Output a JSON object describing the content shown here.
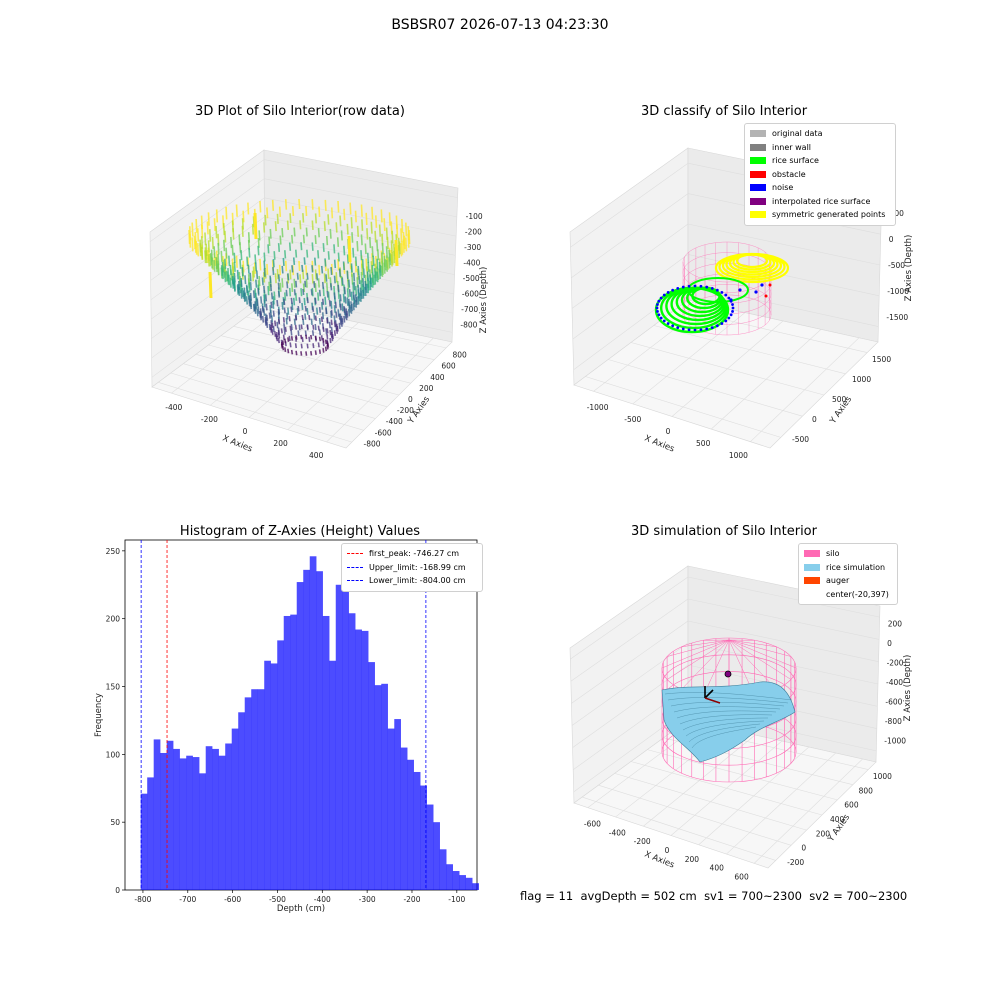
{
  "suptitle": "BSBSR07 2026-07-13 04:23:30",
  "panels": {
    "raw": {
      "title": "3D Plot of Silo Interior(row data)",
      "xlabel": "X Axies",
      "ylabel": "Y Axies",
      "zlabel": "Z Axies (Depth)",
      "xticks": [
        "-400",
        "-200",
        "0",
        "200",
        "400"
      ],
      "yticks": [
        "-800",
        "-600",
        "-400",
        "-200",
        "0",
        "200",
        "400",
        "600",
        "800"
      ],
      "zticks": [
        "-100",
        "-200",
        "-300",
        "-400",
        "-500",
        "-600",
        "-700",
        "-800"
      ],
      "colormap": "viridis"
    },
    "classify": {
      "title": "3D classify of Silo Interior",
      "xlabel": "X Axies",
      "ylabel": "Y Axies",
      "zlabel": "Z Axies (Depth)",
      "xticks": [
        "-1000",
        "-500",
        "0",
        "500",
        "1000"
      ],
      "yticks": [
        "-500",
        "0",
        "500",
        "1000",
        "1500"
      ],
      "zticks": [
        "500",
        "0",
        "-500",
        "-1000",
        "-1500"
      ],
      "legend": [
        {
          "label": "original data",
          "color": "#b3b3b3"
        },
        {
          "label": "inner wall",
          "color": "#808080"
        },
        {
          "label": "rice surface",
          "color": "#00ff00"
        },
        {
          "label": "obstacle",
          "color": "#ff0000"
        },
        {
          "label": "noise",
          "color": "#0000ff"
        },
        {
          "label": "interpolated rice surface",
          "color": "#800080"
        },
        {
          "label": "symmetric generated points",
          "color": "#ffff00"
        }
      ]
    },
    "simulation": {
      "title": "3D simulation of Silo Interior",
      "xlabel": "X Axies",
      "ylabel": "Y Axies",
      "zlabel": "Z Axies (Depth)",
      "xticks": [
        "-600",
        "-400",
        "-200",
        "0",
        "200",
        "400",
        "600"
      ],
      "yticks": [
        "-200",
        "0",
        "200",
        "400",
        "600",
        "800",
        "1000"
      ],
      "zticks": [
        "200",
        "0",
        "-200",
        "-400",
        "-600",
        "-800",
        "-1000"
      ],
      "legend": [
        {
          "label": "silo",
          "color": "#ff69b4"
        },
        {
          "label": "rice simulation",
          "color": "#87ceeb"
        },
        {
          "label": "auger",
          "color": "#ff4500"
        },
        {
          "label": "center(-20,397)",
          "color": ""
        }
      ]
    }
  },
  "chart_data": {
    "type": "bar",
    "title": "Histogram of Z-Axies (Height) Values",
    "xlabel": "Depth (cm)",
    "ylabel": "Frequency",
    "bar_color": "#0000ff",
    "bin_start": -805,
    "bin_width": 14.5,
    "values": [
      71,
      83,
      111,
      101,
      110,
      104,
      97,
      99,
      98,
      86,
      106,
      104,
      99,
      108,
      119,
      131,
      142,
      148,
      148,
      169,
      167,
      184,
      202,
      203,
      227,
      236,
      246,
      235,
      202,
      169,
      225,
      229,
      204,
      192,
      191,
      168,
      151,
      152,
      119,
      126,
      105,
      96,
      87,
      77,
      63,
      50,
      30,
      19,
      14,
      11,
      9,
      5
    ],
    "xlim": [
      -840,
      -55
    ],
    "ylim": [
      0,
      258
    ],
    "xticks": [
      "-800",
      "-700",
      "-600",
      "-500",
      "-400",
      "-300",
      "-200",
      "-100"
    ],
    "yticks": [
      "0",
      "50",
      "100",
      "150",
      "200",
      "250"
    ],
    "vlines": [
      {
        "label": "first_peak: -746.27 cm",
        "x": -746.27,
        "color": "#ff0000"
      },
      {
        "label": "Upper_limit: -168.99 cm",
        "x": -168.99,
        "color": "#0000ff"
      },
      {
        "label": "Lower_limit: -804.00 cm",
        "x": -804.0,
        "color": "#0000ff"
      }
    ]
  },
  "status": {
    "flag": "flag = 11",
    "avg_depth": "avgDepth = 502 cm",
    "sv1": "sv1 = 700~2300",
    "sv2": "sv2 = 700~2300"
  }
}
